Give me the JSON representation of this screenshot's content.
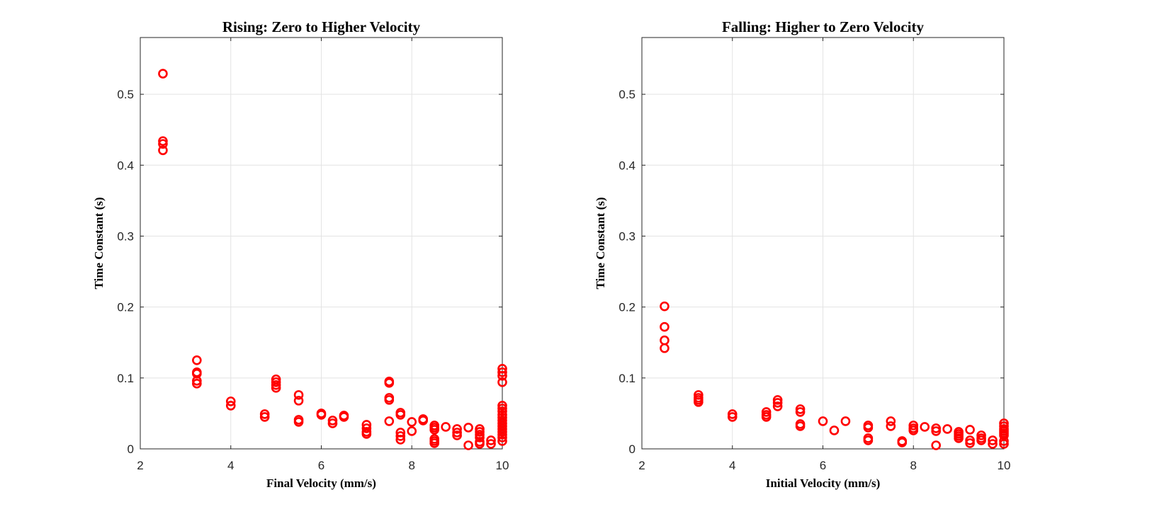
{
  "chart_data": [
    {
      "type": "scatter",
      "title": "Rising: Zero to Higher Velocity",
      "xlabel": "Final Velocity (mm/s)",
      "ylabel": "Time Constant (s)",
      "xlim": [
        2,
        10
      ],
      "ylim": [
        0,
        0.58
      ],
      "xticks": [
        "2",
        "4",
        "6",
        "8",
        "10"
      ],
      "yticks": [
        "0",
        "0.1",
        "0.2",
        "0.3",
        "0.4",
        "0.5"
      ],
      "grid": true,
      "marker": "circle-open",
      "color": "#ff0000",
      "series": [
        {
          "points": [
            [
              2.5,
              0.529
            ],
            [
              2.5,
              0.434
            ],
            [
              2.5,
              0.43
            ],
            [
              2.5,
              0.421
            ],
            [
              3.25,
              0.125
            ],
            [
              3.25,
              0.108
            ],
            [
              3.25,
              0.106
            ],
            [
              3.25,
              0.096
            ],
            [
              3.25,
              0.092
            ],
            [
              4.0,
              0.067
            ],
            [
              4.0,
              0.061
            ],
            [
              4.75,
              0.049
            ],
            [
              4.75,
              0.045
            ],
            [
              5.0,
              0.098
            ],
            [
              5.0,
              0.094
            ],
            [
              5.0,
              0.09
            ],
            [
              5.0,
              0.086
            ],
            [
              5.5,
              0.076
            ],
            [
              5.5,
              0.068
            ],
            [
              5.5,
              0.041
            ],
            [
              5.5,
              0.038
            ],
            [
              6.0,
              0.05
            ],
            [
              6.0,
              0.048
            ],
            [
              6.25,
              0.04
            ],
            [
              6.25,
              0.036
            ],
            [
              6.5,
              0.047
            ],
            [
              6.5,
              0.045
            ],
            [
              7.0,
              0.034
            ],
            [
              7.0,
              0.029
            ],
            [
              7.0,
              0.024
            ],
            [
              7.0,
              0.021
            ],
            [
              7.5,
              0.095
            ],
            [
              7.5,
              0.093
            ],
            [
              7.5,
              0.072
            ],
            [
              7.5,
              0.069
            ],
            [
              7.5,
              0.039
            ],
            [
              7.75,
              0.051
            ],
            [
              7.75,
              0.048
            ],
            [
              7.75,
              0.023
            ],
            [
              7.75,
              0.018
            ],
            [
              7.75,
              0.013
            ],
            [
              8.0,
              0.038
            ],
            [
              8.0,
              0.025
            ],
            [
              8.25,
              0.042
            ],
            [
              8.25,
              0.04
            ],
            [
              8.5,
              0.033
            ],
            [
              8.5,
              0.03
            ],
            [
              8.5,
              0.027
            ],
            [
              8.5,
              0.014
            ],
            [
              8.5,
              0.011
            ],
            [
              8.5,
              0.008
            ],
            [
              8.75,
              0.031
            ],
            [
              9.0,
              0.028
            ],
            [
              9.0,
              0.023
            ],
            [
              9.0,
              0.019
            ],
            [
              9.25,
              0.03
            ],
            [
              9.25,
              0.005
            ],
            [
              9.5,
              0.028
            ],
            [
              9.5,
              0.024
            ],
            [
              9.5,
              0.02
            ],
            [
              9.5,
              0.016
            ],
            [
              9.5,
              0.01
            ],
            [
              9.5,
              0.007
            ],
            [
              9.75,
              0.012
            ],
            [
              9.75,
              0.007
            ],
            [
              10.0,
              0.113
            ],
            [
              10.0,
              0.108
            ],
            [
              10.0,
              0.103
            ],
            [
              10.0,
              0.094
            ],
            [
              10.0,
              0.061
            ],
            [
              10.0,
              0.057
            ],
            [
              10.0,
              0.053
            ],
            [
              10.0,
              0.048
            ],
            [
              10.0,
              0.044
            ],
            [
              10.0,
              0.04
            ],
            [
              10.0,
              0.036
            ],
            [
              10.0,
              0.032
            ],
            [
              10.0,
              0.028
            ],
            [
              10.0,
              0.024
            ],
            [
              10.0,
              0.02
            ],
            [
              10.0,
              0.016
            ],
            [
              10.0,
              0.011
            ]
          ]
        }
      ]
    },
    {
      "type": "scatter",
      "title": "Falling: Higher to Zero Velocity",
      "xlabel": "Initial Velocity (mm/s)",
      "ylabel": "Time Constant (s)",
      "xlim": [
        2,
        10
      ],
      "ylim": [
        0,
        0.58
      ],
      "xticks": [
        "2",
        "4",
        "6",
        "8",
        "10"
      ],
      "yticks": [
        "0",
        "0.1",
        "0.2",
        "0.3",
        "0.4",
        "0.5"
      ],
      "grid": true,
      "marker": "circle-open",
      "color": "#ff0000",
      "series": [
        {
          "points": [
            [
              2.5,
              0.201
            ],
            [
              2.5,
              0.172
            ],
            [
              2.5,
              0.153
            ],
            [
              2.5,
              0.142
            ],
            [
              3.25,
              0.076
            ],
            [
              3.25,
              0.072
            ],
            [
              3.25,
              0.069
            ],
            [
              3.25,
              0.066
            ],
            [
              4.0,
              0.049
            ],
            [
              4.0,
              0.045
            ],
            [
              4.75,
              0.052
            ],
            [
              4.75,
              0.048
            ],
            [
              4.75,
              0.045
            ],
            [
              5.0,
              0.069
            ],
            [
              5.0,
              0.065
            ],
            [
              5.0,
              0.06
            ],
            [
              5.5,
              0.056
            ],
            [
              5.5,
              0.052
            ],
            [
              5.5,
              0.035
            ],
            [
              5.5,
              0.032
            ],
            [
              6.0,
              0.039
            ],
            [
              6.25,
              0.026
            ],
            [
              6.5,
              0.039
            ],
            [
              7.0,
              0.033
            ],
            [
              7.0,
              0.03
            ],
            [
              7.0,
              0.015
            ],
            [
              7.0,
              0.012
            ],
            [
              7.5,
              0.039
            ],
            [
              7.5,
              0.032
            ],
            [
              7.75,
              0.011
            ],
            [
              7.75,
              0.009
            ],
            [
              8.0,
              0.033
            ],
            [
              8.0,
              0.029
            ],
            [
              8.0,
              0.026
            ],
            [
              8.25,
              0.031
            ],
            [
              8.5,
              0.029
            ],
            [
              8.5,
              0.025
            ],
            [
              8.5,
              0.005
            ],
            [
              8.75,
              0.028
            ],
            [
              9.0,
              0.024
            ],
            [
              9.0,
              0.021
            ],
            [
              9.0,
              0.018
            ],
            [
              9.0,
              0.015
            ],
            [
              9.25,
              0.027
            ],
            [
              9.25,
              0.012
            ],
            [
              9.25,
              0.008
            ],
            [
              9.5,
              0.019
            ],
            [
              9.5,
              0.015
            ],
            [
              9.5,
              0.012
            ],
            [
              9.75,
              0.012
            ],
            [
              9.75,
              0.007
            ],
            [
              10.0,
              0.036
            ],
            [
              10.0,
              0.032
            ],
            [
              10.0,
              0.028
            ],
            [
              10.0,
              0.025
            ],
            [
              10.0,
              0.022
            ],
            [
              10.0,
              0.019
            ],
            [
              10.0,
              0.011
            ],
            [
              10.0,
              0.007
            ]
          ]
        }
      ]
    }
  ]
}
